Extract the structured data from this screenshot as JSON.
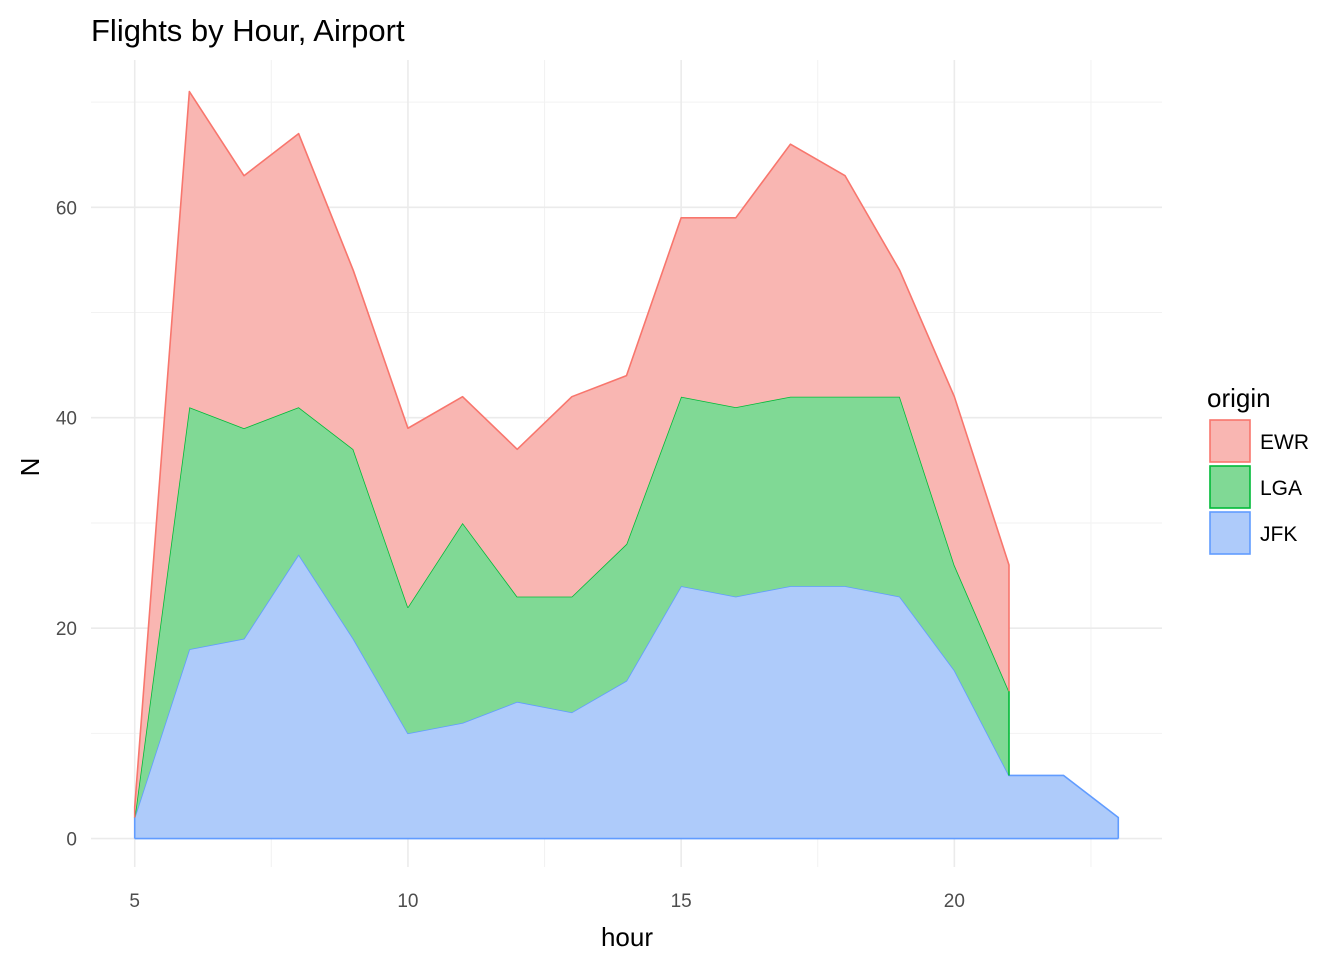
{
  "chart_data": {
    "type": "area",
    "stacked": true,
    "title": "Flights by Hour, Airport",
    "xlabel": "hour",
    "ylabel": "N",
    "xlim": [
      4.2,
      23.8
    ],
    "ylim": [
      -2.7,
      74
    ],
    "xticks": [
      5,
      10,
      15,
      20
    ],
    "yticks": [
      0,
      20,
      40,
      60
    ],
    "xtick_labels": [
      "5",
      "10",
      "15",
      "20"
    ],
    "ytick_labels": [
      "0",
      "20",
      "40",
      "60"
    ],
    "grid": true,
    "legend_position": "right",
    "legend_title": "origin",
    "series": [
      {
        "name": "JFK",
        "fill": "#aecbfa",
        "stroke": "#619cff",
        "x": [
          5,
          6,
          7,
          8,
          9,
          10,
          11,
          12,
          13,
          14,
          15,
          16,
          17,
          18,
          19,
          20,
          21,
          22,
          23
        ],
        "values": [
          2,
          18,
          19,
          27,
          19,
          10,
          11,
          13,
          12,
          15,
          24,
          23,
          24,
          24,
          23,
          16,
          6,
          6,
          2
        ]
      },
      {
        "name": "LGA",
        "fill": "#80d995",
        "stroke": "#00ba38",
        "x": [
          5,
          6,
          7,
          8,
          9,
          10,
          11,
          12,
          13,
          14,
          15,
          16,
          17,
          18,
          19,
          20,
          21
        ],
        "values": [
          0,
          23,
          20,
          14,
          18,
          12,
          19,
          10,
          11,
          13,
          18,
          18,
          18,
          18,
          19,
          10,
          8
        ]
      },
      {
        "name": "EWR",
        "fill": "#f9b6b2",
        "stroke": "#f8766d",
        "x": [
          5,
          6,
          7,
          8,
          9,
          10,
          11,
          12,
          13,
          14,
          15,
          16,
          17,
          18,
          19,
          20,
          21
        ],
        "values": [
          1,
          30,
          24,
          26,
          17,
          17,
          12,
          14,
          19,
          16,
          17,
          18,
          24,
          21,
          12,
          16,
          12
        ]
      }
    ],
    "legend_order": [
      "EWR",
      "LGA",
      "JFK"
    ]
  }
}
